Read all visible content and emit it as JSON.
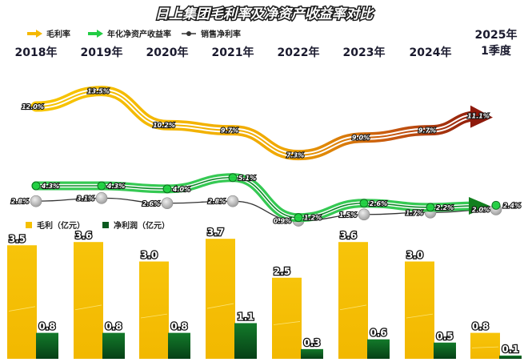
{
  "title": "日上集团毛利率及净资产收益率对比",
  "colors": {
    "gross_margin": "#f5b800",
    "gross_margin_end": "#9b1b10",
    "roe": "#22cc44",
    "net_margin": "#333333",
    "revenue_bar": "#f5c000",
    "profit_bar": "#0b5a1f"
  },
  "chart_data": [
    {
      "type": "line",
      "categories": [
        "2018年",
        "2019年",
        "2020年",
        "2021年",
        "2022年",
        "2023年",
        "2024年",
        "2025年\n1季度"
      ],
      "legend_position": "top-left",
      "series": [
        {
          "name": "毛利率",
          "values": [
            12.0,
            13.5,
            10.2,
            9.7,
            7.3,
            9.0,
            9.7,
            11.1
          ],
          "labels": [
            "12.0%",
            "13.5%",
            "10.2%",
            "9.7%",
            "7.3%",
            "9.0%",
            "9.7%",
            "11.1%"
          ]
        },
        {
          "name": "年化净资产收益率",
          "values": [
            4.3,
            4.3,
            4.0,
            5.1,
            1.2,
            2.6,
            2.2,
            2.4
          ],
          "labels": [
            "4.3%",
            "4.3%",
            "4.0%",
            "5.1%",
            "1.2%",
            "2.6%",
            "2.2%",
            "2.4%"
          ]
        },
        {
          "name": "销售净利率",
          "values": [
            2.8,
            3.1,
            2.6,
            2.8,
            0.9,
            1.5,
            1.7,
            2.0
          ],
          "labels": [
            "2.8%",
            "3.1%",
            "2.6%",
            "2.8%",
            "0.9%",
            "1.5%",
            "1.7%",
            "2.0%"
          ]
        }
      ]
    },
    {
      "type": "bar",
      "categories": [
        "2018年",
        "2019年",
        "2020年",
        "2021年",
        "2022年",
        "2023年",
        "2024年",
        "2025年\n1季度"
      ],
      "legend_position": "top-left",
      "series": [
        {
          "name": "毛利（亿元）",
          "values": [
            3.5,
            3.6,
            3.0,
            3.7,
            2.5,
            3.6,
            3.0,
            0.8
          ],
          "labels": [
            "3.5",
            "3.6",
            "3.0",
            "3.7",
            "2.5",
            "3.6",
            "3.0",
            "0.8"
          ]
        },
        {
          "name": "净利润（亿元）",
          "values": [
            0.8,
            0.8,
            0.8,
            1.1,
            0.3,
            0.6,
            0.5,
            0.1
          ],
          "labels": [
            "0.8",
            "0.8",
            "0.8",
            "1.1",
            "0.3",
            "0.6",
            "0.5",
            "0.1"
          ]
        }
      ]
    }
  ]
}
